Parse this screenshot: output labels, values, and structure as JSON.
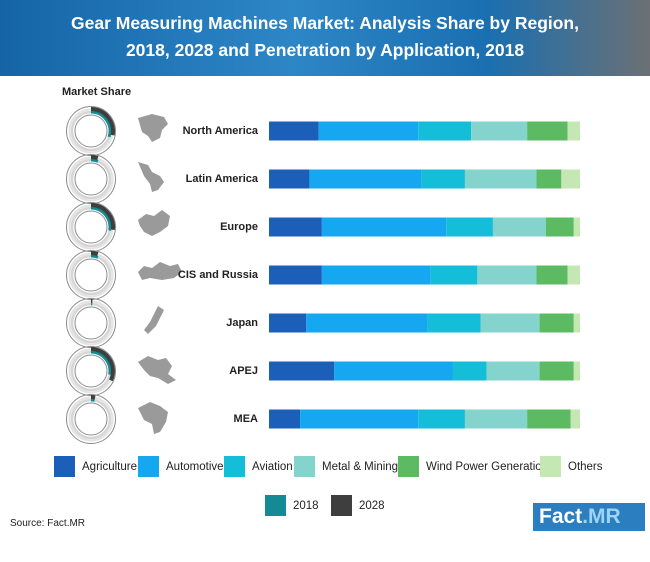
{
  "title": {
    "line1": "Gear Measuring Machines Market: Analysis Share by Region,",
    "line2": "2018, 2028 and Penetration by Application, 2018"
  },
  "market_share_label": "Market Share",
  "source": "Source: Fact.MR",
  "logo": {
    "main": "Fact",
    "suffix": ".MR"
  },
  "ring_colors": {
    "2018": "#138a94",
    "2028": "#3e3e3e"
  },
  "chart_data": {
    "type": "bar",
    "orientation": "horizontal",
    "stacked": true,
    "normalized": true,
    "title": "Gear Measuring Machines Market: Analysis Share by Region, 2018, 2028 and Penetration by Application, 2018",
    "categories": [
      "North America",
      "Latin America",
      "Europe",
      "CIS and Russia",
      "Japan",
      "APEJ",
      "MEA"
    ],
    "series": [
      {
        "name": "Agriculture",
        "color": "#1c5fb8",
        "values": [
          16,
          13,
          17,
          17,
          12,
          21,
          10
        ]
      },
      {
        "name": "Automotive",
        "color": "#15a7ef",
        "values": [
          32,
          36,
          40,
          35,
          39,
          38,
          38
        ]
      },
      {
        "name": "Aviation",
        "color": "#14bdd8",
        "values": [
          17,
          14,
          15,
          15,
          17,
          11,
          15
        ]
      },
      {
        "name": "Metal & Mining",
        "color": "#84d3cc",
        "values": [
          18,
          23,
          17,
          19,
          19,
          17,
          20
        ]
      },
      {
        "name": "Wind Power Generation",
        "color": "#5cbb62",
        "values": [
          13,
          8,
          9,
          10,
          11,
          11,
          14
        ]
      },
      {
        "name": "Others",
        "color": "#c5e7b4",
        "values": [
          4,
          6,
          2,
          4,
          2,
          2,
          3
        ]
      }
    ],
    "market_share": {
      "series": [
        {
          "name": "2018",
          "values": [
            0.3,
            0.06,
            0.28,
            0.06,
            0.01,
            0.28,
            0.03
          ]
        },
        {
          "name": "2028",
          "values": [
            0.28,
            0.05,
            0.27,
            0.05,
            0.01,
            0.32,
            0.03
          ]
        }
      ]
    },
    "legend": [
      "Agriculture",
      "Automotive",
      "Aviation",
      "Metal & Mining",
      "Wind Power Generation",
      "Others"
    ],
    "legend2": [
      "2018",
      "2028"
    ]
  }
}
